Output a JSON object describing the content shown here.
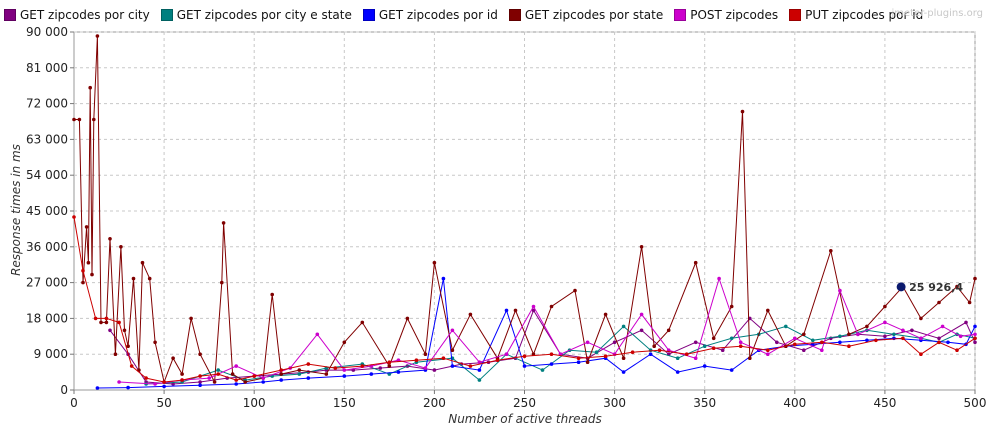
{
  "watermark": "jmeter-plugins.org",
  "chart_data": {
    "type": "line",
    "xlabel": "Number of active threads",
    "ylabel": "Response times in ms",
    "xlim": [
      0,
      500
    ],
    "ylim": [
      0,
      90000
    ],
    "x_ticks": [
      0,
      50,
      100,
      150,
      200,
      250,
      300,
      350,
      400,
      450,
      500
    ],
    "y_ticks": [
      0,
      9000,
      18000,
      27000,
      36000,
      45000,
      54000,
      63000,
      72000,
      81000,
      90000
    ],
    "y_tick_labels": [
      "0",
      "9 000",
      "18 000",
      "27 000",
      "36 000",
      "45 000",
      "54 000",
      "63 000",
      "72 000",
      "81 000",
      "90 000"
    ],
    "grid": true,
    "legend_position": "top",
    "annotation": {
      "x": 459,
      "y": 25926.4,
      "text": "25 926,4"
    },
    "series": [
      {
        "name": "GET zipcodes por city",
        "color": "#800080",
        "points": [
          [
            20,
            15000
          ],
          [
            30,
            9000
          ],
          [
            40,
            2000
          ],
          [
            55,
            1500
          ],
          [
            70,
            2000
          ],
          [
            85,
            3000
          ],
          [
            100,
            3500
          ],
          [
            115,
            4000
          ],
          [
            130,
            4500
          ],
          [
            140,
            5000
          ],
          [
            155,
            5000
          ],
          [
            170,
            5500
          ],
          [
            185,
            6000
          ],
          [
            200,
            5000
          ],
          [
            215,
            6500
          ],
          [
            230,
            7000
          ],
          [
            245,
            8000
          ],
          [
            255,
            20000
          ],
          [
            270,
            9000
          ],
          [
            285,
            8000
          ],
          [
            300,
            12000
          ],
          [
            315,
            15000
          ],
          [
            330,
            9000
          ],
          [
            345,
            12000
          ],
          [
            360,
            10000
          ],
          [
            375,
            18000
          ],
          [
            390,
            12000
          ],
          [
            405,
            10000
          ],
          [
            420,
            13000
          ],
          [
            435,
            14000
          ],
          [
            450,
            13500
          ],
          [
            465,
            15000
          ],
          [
            480,
            13000
          ],
          [
            495,
            17000
          ],
          [
            500,
            12000
          ]
        ]
      },
      {
        "name": "GET zipcodes por city e state",
        "color": "#008080",
        "points": [
          [
            40,
            1500
          ],
          [
            60,
            2000
          ],
          [
            80,
            5000
          ],
          [
            95,
            2500
          ],
          [
            110,
            3500
          ],
          [
            125,
            4000
          ],
          [
            140,
            5500
          ],
          [
            160,
            6500
          ],
          [
            175,
            4000
          ],
          [
            190,
            7000
          ],
          [
            210,
            8000
          ],
          [
            225,
            2500
          ],
          [
            240,
            9000
          ],
          [
            260,
            5000
          ],
          [
            275,
            10000
          ],
          [
            290,
            9500
          ],
          [
            305,
            16000
          ],
          [
            320,
            10000
          ],
          [
            335,
            8000
          ],
          [
            350,
            11000
          ],
          [
            365,
            13000
          ],
          [
            380,
            14000
          ],
          [
            395,
            16000
          ],
          [
            410,
            12500
          ],
          [
            425,
            13500
          ],
          [
            440,
            15000
          ],
          [
            455,
            14000
          ],
          [
            470,
            13000
          ],
          [
            480,
            12000
          ],
          [
            490,
            14000
          ],
          [
            500,
            13000
          ]
        ]
      },
      {
        "name": "GET zipcodes por id",
        "color": "#0000FF",
        "points": [
          [
            13,
            500
          ],
          [
            30,
            600
          ],
          [
            50,
            900
          ],
          [
            70,
            1200
          ],
          [
            90,
            1500
          ],
          [
            105,
            2000
          ],
          [
            115,
            2500
          ],
          [
            130,
            3000
          ],
          [
            150,
            3500
          ],
          [
            165,
            4000
          ],
          [
            180,
            4500
          ],
          [
            195,
            5000
          ],
          [
            205,
            28000
          ],
          [
            210,
            6000
          ],
          [
            225,
            5000
          ],
          [
            240,
            20000
          ],
          [
            250,
            6000
          ],
          [
            265,
            6500
          ],
          [
            280,
            7000
          ],
          [
            295,
            8000
          ],
          [
            305,
            4500
          ],
          [
            320,
            9000
          ],
          [
            335,
            4500
          ],
          [
            350,
            6000
          ],
          [
            365,
            5000
          ],
          [
            380,
            10000
          ],
          [
            395,
            11000
          ],
          [
            410,
            11500
          ],
          [
            425,
            12000
          ],
          [
            440,
            12500
          ],
          [
            455,
            13000
          ],
          [
            470,
            12500
          ],
          [
            485,
            12000
          ],
          [
            495,
            11500
          ],
          [
            500,
            16000
          ]
        ]
      },
      {
        "name": "GET zipcodes por state",
        "color": "#800000",
        "points": [
          [
            0,
            68000
          ],
          [
            3,
            68000
          ],
          [
            5,
            27000
          ],
          [
            7,
            41000
          ],
          [
            8,
            32000
          ],
          [
            9,
            76000
          ],
          [
            10,
            29000
          ],
          [
            11,
            68000
          ],
          [
            13,
            89000
          ],
          [
            15,
            17000
          ],
          [
            18,
            17000
          ],
          [
            20,
            38000
          ],
          [
            23,
            9000
          ],
          [
            26,
            36000
          ],
          [
            28,
            15000
          ],
          [
            30,
            11000
          ],
          [
            33,
            28000
          ],
          [
            36,
            5000
          ],
          [
            38,
            32000
          ],
          [
            42,
            28000
          ],
          [
            45,
            12000
          ],
          [
            50,
            2000
          ],
          [
            55,
            8000
          ],
          [
            60,
            4000
          ],
          [
            65,
            18000
          ],
          [
            70,
            9000
          ],
          [
            78,
            2000
          ],
          [
            82,
            27000
          ],
          [
            83,
            42000
          ],
          [
            88,
            4000
          ],
          [
            95,
            2000
          ],
          [
            105,
            3000
          ],
          [
            110,
            24000
          ],
          [
            115,
            4000
          ],
          [
            125,
            5000
          ],
          [
            140,
            4000
          ],
          [
            150,
            12000
          ],
          [
            160,
            17000
          ],
          [
            175,
            6000
          ],
          [
            185,
            18000
          ],
          [
            195,
            9000
          ],
          [
            200,
            32000
          ],
          [
            210,
            10000
          ],
          [
            220,
            19000
          ],
          [
            235,
            8000
          ],
          [
            245,
            20000
          ],
          [
            255,
            9000
          ],
          [
            265,
            21000
          ],
          [
            278,
            25000
          ],
          [
            285,
            7000
          ],
          [
            295,
            19000
          ],
          [
            305,
            8000
          ],
          [
            315,
            36000
          ],
          [
            322,
            11000
          ],
          [
            330,
            15000
          ],
          [
            345,
            32000
          ],
          [
            355,
            13000
          ],
          [
            365,
            21000
          ],
          [
            371,
            70000
          ],
          [
            375,
            8000
          ],
          [
            385,
            20000
          ],
          [
            395,
            11000
          ],
          [
            405,
            14000
          ],
          [
            420,
            35000
          ],
          [
            430,
            14000
          ],
          [
            440,
            16000
          ],
          [
            450,
            21000
          ],
          [
            460,
            26000
          ],
          [
            470,
            18000
          ],
          [
            480,
            22000
          ],
          [
            490,
            26000
          ],
          [
            497,
            22000
          ],
          [
            500,
            28000
          ]
        ]
      },
      {
        "name": "POST zipcodes",
        "color": "#CC00CC",
        "points": [
          [
            25,
            2000
          ],
          [
            45,
            1500
          ],
          [
            60,
            2500
          ],
          [
            75,
            3000
          ],
          [
            90,
            6000
          ],
          [
            105,
            3000
          ],
          [
            120,
            5500
          ],
          [
            135,
            14000
          ],
          [
            150,
            5000
          ],
          [
            165,
            6000
          ],
          [
            180,
            7500
          ],
          [
            195,
            5500
          ],
          [
            210,
            15000
          ],
          [
            225,
            7000
          ],
          [
            240,
            9000
          ],
          [
            255,
            21000
          ],
          [
            270,
            9000
          ],
          [
            285,
            12000
          ],
          [
            300,
            9000
          ],
          [
            315,
            19000
          ],
          [
            330,
            10000
          ],
          [
            345,
            8000
          ],
          [
            358,
            28000
          ],
          [
            370,
            12000
          ],
          [
            385,
            9000
          ],
          [
            400,
            13000
          ],
          [
            415,
            10000
          ],
          [
            425,
            25000
          ],
          [
            435,
            14000
          ],
          [
            450,
            17000
          ],
          [
            460,
            15000
          ],
          [
            470,
            13000
          ],
          [
            482,
            16000
          ],
          [
            492,
            13500
          ],
          [
            500,
            14000
          ]
        ]
      },
      {
        "name": "PUT zipcodes por id",
        "color": "#CC0000",
        "points": [
          [
            0,
            43500
          ],
          [
            5,
            30000
          ],
          [
            12,
            18000
          ],
          [
            18,
            18000
          ],
          [
            25,
            17000
          ],
          [
            32,
            6000
          ],
          [
            40,
            3000
          ],
          [
            50,
            2000
          ],
          [
            60,
            2500
          ],
          [
            70,
            3500
          ],
          [
            80,
            4000
          ],
          [
            90,
            2500
          ],
          [
            100,
            3500
          ],
          [
            115,
            5000
          ],
          [
            130,
            6500
          ],
          [
            145,
            5500
          ],
          [
            160,
            6000
          ],
          [
            175,
            7000
          ],
          [
            190,
            7500
          ],
          [
            205,
            8000
          ],
          [
            220,
            6000
          ],
          [
            235,
            7500
          ],
          [
            250,
            8500
          ],
          [
            265,
            9000
          ],
          [
            280,
            8000
          ],
          [
            295,
            8500
          ],
          [
            310,
            9500
          ],
          [
            325,
            10000
          ],
          [
            340,
            9000
          ],
          [
            355,
            10500
          ],
          [
            370,
            11000
          ],
          [
            385,
            10000
          ],
          [
            400,
            11500
          ],
          [
            415,
            12000
          ],
          [
            430,
            11000
          ],
          [
            445,
            12500
          ],
          [
            460,
            13000
          ],
          [
            470,
            9000
          ],
          [
            480,
            12000
          ],
          [
            490,
            10000
          ],
          [
            500,
            13000
          ]
        ]
      }
    ]
  }
}
